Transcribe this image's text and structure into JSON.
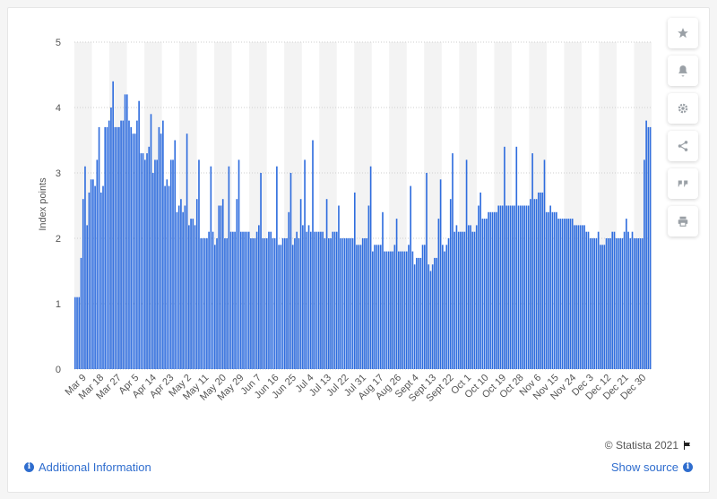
{
  "chart_data": {
    "type": "bar",
    "ylabel": "Index points",
    "ylim": [
      0,
      5
    ],
    "yticks": [
      0,
      1,
      2,
      3,
      4,
      5
    ],
    "bar_color": "#2f6dde",
    "grid": true,
    "xtick_labels": [
      "Mar 9",
      "Mar 18",
      "Mar 27",
      "Apr 5",
      "Apr 14",
      "Apr 23",
      "May 2",
      "May 11",
      "May 20",
      "May 29",
      "Jun 7",
      "Jun 16",
      "Jun 25",
      "Jul 4",
      "Jul 13",
      "Jul 22",
      "Jul 31",
      "Aug 17",
      "Aug 26",
      "Sept 4",
      "Sept 13",
      "Sept 22",
      "Oct 1",
      "Oct 10",
      "Oct 19",
      "Oct 28",
      "Nov 6",
      "Nov 15",
      "Nov 24",
      "Dec 3",
      "Dec 12",
      "Dec 21",
      "Dec 30"
    ],
    "values": [
      1.1,
      1.1,
      1.1,
      1.7,
      2.6,
      3.1,
      2.2,
      2.7,
      2.9,
      2.9,
      2.8,
      3.2,
      3.7,
      2.7,
      2.8,
      3.7,
      3.7,
      3.8,
      4.0,
      4.4,
      3.7,
      3.7,
      3.7,
      3.8,
      3.8,
      4.2,
      4.2,
      3.8,
      3.7,
      3.6,
      3.6,
      3.8,
      4.1,
      3.3,
      3.3,
      3.2,
      3.3,
      3.4,
      3.9,
      3.0,
      3.2,
      3.2,
      3.7,
      3.6,
      3.8,
      2.8,
      2.9,
      2.8,
      3.2,
      3.2,
      3.5,
      2.4,
      2.5,
      2.6,
      2.4,
      2.5,
      3.6,
      2.2,
      2.3,
      2.3,
      2.2,
      2.6,
      3.2,
      2.0,
      2.0,
      2.0,
      2.0,
      2.1,
      3.1,
      2.1,
      1.9,
      2.0,
      2.5,
      2.5,
      2.6,
      2.0,
      2.0,
      3.1,
      2.1,
      2.1,
      2.1,
      2.6,
      3.2,
      2.1,
      2.1,
      2.1,
      2.1,
      2.1,
      2.0,
      2.0,
      2.0,
      2.1,
      2.2,
      3.0,
      2.0,
      2.0,
      2.0,
      2.1,
      2.1,
      2.0,
      2.0,
      3.1,
      1.9,
      1.9,
      2.0,
      2.0,
      2.0,
      2.4,
      3.0,
      1.9,
      2.0,
      2.1,
      2.0,
      2.6,
      2.2,
      3.2,
      2.1,
      2.2,
      2.1,
      3.5,
      2.1,
      2.1,
      2.1,
      2.1,
      2.1,
      2.0,
      2.6,
      2.0,
      2.0,
      2.1,
      2.1,
      2.1,
      2.5,
      2.0,
      2.0,
      2.0,
      2.0,
      2.0,
      2.0,
      2.0,
      2.7,
      1.9,
      1.9,
      1.9,
      2.0,
      2.0,
      2.0,
      2.5,
      3.1,
      1.8,
      1.9,
      1.9,
      1.9,
      1.9,
      2.4,
      1.8,
      1.8,
      1.8,
      1.8,
      1.8,
      1.9,
      2.3,
      1.8,
      1.8,
      1.8,
      1.8,
      1.8,
      1.9,
      2.8,
      1.8,
      1.6,
      1.7,
      1.7,
      1.7,
      1.9,
      1.9,
      3.0,
      1.6,
      1.5,
      1.6,
      1.7,
      1.7,
      2.3,
      2.9,
      1.9,
      1.8,
      1.9,
      2.0,
      2.6,
      3.3,
      2.1,
      2.2,
      2.1,
      2.1,
      2.1,
      2.1,
      3.2,
      2.2,
      2.2,
      2.1,
      2.1,
      2.2,
      2.5,
      2.7,
      2.3,
      2.3,
      2.3,
      2.4,
      2.4,
      2.4,
      2.4,
      2.4,
      2.5,
      2.5,
      2.5,
      3.4,
      2.5,
      2.5,
      2.5,
      2.5,
      2.5,
      3.4,
      2.5,
      2.5,
      2.5,
      2.5,
      2.5,
      2.5,
      2.6,
      3.3,
      2.6,
      2.6,
      2.7,
      2.7,
      2.7,
      3.2,
      2.4,
      2.4,
      2.5,
      2.4,
      2.4,
      2.4,
      2.3,
      2.3,
      2.3,
      2.3,
      2.3,
      2.3,
      2.3,
      2.3,
      2.2,
      2.2,
      2.2,
      2.2,
      2.2,
      2.2,
      2.1,
      2.1,
      2.0,
      2.0,
      2.0,
      2.0,
      2.1,
      1.9,
      1.9,
      1.9,
      2.0,
      2.0,
      2.0,
      2.1,
      2.1,
      2.0,
      2.0,
      2.0,
      2.0,
      2.1,
      2.3,
      2.1,
      2.0,
      2.1,
      2.0,
      2.0,
      2.0,
      2.0,
      2.0,
      3.2,
      3.8,
      3.7,
      3.7
    ]
  },
  "footer": {
    "copyright": "© Statista 2021",
    "additional_info": "Additional Information",
    "show_source": "Show source"
  },
  "toolbar": {
    "icons": [
      "star-icon",
      "bell-icon",
      "gear-icon",
      "share-icon",
      "quote-icon",
      "print-icon"
    ]
  }
}
